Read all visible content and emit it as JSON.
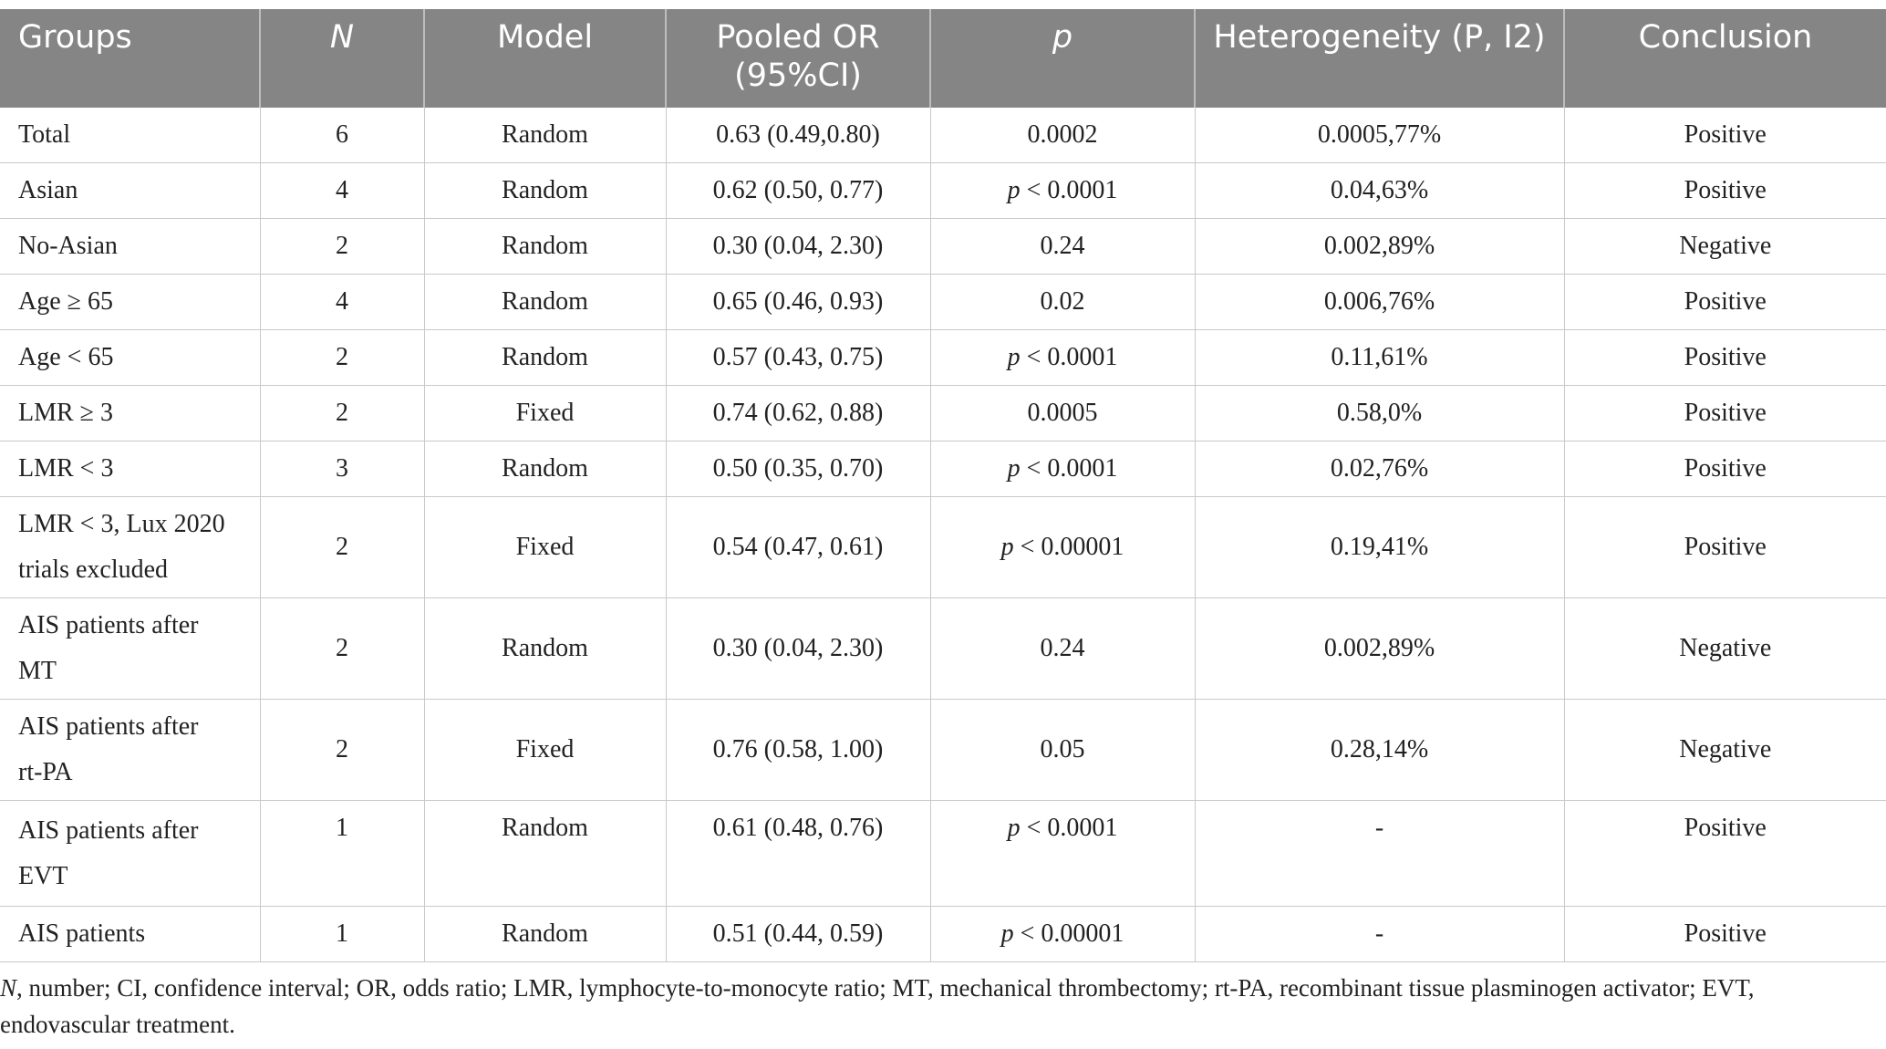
{
  "table": {
    "headers": {
      "groups": "Groups",
      "n": "N",
      "model": "Model",
      "pooled_or_line1": "Pooled OR",
      "pooled_or_line2": "(95%CI)",
      "p": "p",
      "heterogeneity": "Heterogeneity (P, I2)",
      "conclusion": "Conclusion"
    },
    "rows": [
      {
        "group": "Total",
        "n": "6",
        "model": "Random",
        "or": "0.63 (0.49,0.80)",
        "p_prefix": "",
        "p": "0.0002",
        "het": "0.0005,77%",
        "conclusion": "Positive"
      },
      {
        "group": "Asian",
        "n": "4",
        "model": "Random",
        "or": "0.62 (0.50, 0.77)",
        "p_prefix": "p",
        "p": " < 0.0001",
        "het": "0.04,63%",
        "conclusion": "Positive"
      },
      {
        "group": "No-Asian",
        "n": "2",
        "model": "Random",
        "or": "0.30 (0.04, 2.30)",
        "p_prefix": "",
        "p": "0.24",
        "het": "0.002,89%",
        "conclusion": "Negative"
      },
      {
        "group": "Age ≥ 65",
        "n": "4",
        "model": "Random",
        "or": "0.65 (0.46, 0.93)",
        "p_prefix": "",
        "p": "0.02",
        "het": "0.006,76%",
        "conclusion": "Positive"
      },
      {
        "group": "Age < 65",
        "n": "2",
        "model": "Random",
        "or": "0.57 (0.43, 0.75)",
        "p_prefix": "p",
        "p": " < 0.0001",
        "het": "0.11,61%",
        "conclusion": "Positive"
      },
      {
        "group": "LMR ≥ 3",
        "n": "2",
        "model": "Fixed",
        "or": "0.74 (0.62, 0.88)",
        "p_prefix": "",
        "p": "0.0005",
        "het": "0.58,0%",
        "conclusion": "Positive"
      },
      {
        "group": "LMR < 3",
        "n": "3",
        "model": "Random",
        "or": "0.50 (0.35, 0.70)",
        "p_prefix": "p",
        "p": " < 0.0001",
        "het": "0.02,76%",
        "conclusion": "Positive"
      },
      {
        "group_line1": "LMR < 3, Lux 2020",
        "group_line2": "trials excluded",
        "n": "2",
        "model": "Fixed",
        "or": "0.54 (0.47, 0.61)",
        "p_prefix": "p",
        "p": " < 0.00001",
        "het": "0.19,41%",
        "conclusion": "Positive"
      },
      {
        "group_line1": "AIS patients after",
        "group_line2": "MT",
        "n": "2",
        "model": "Random",
        "or": "0.30 (0.04, 2.30)",
        "p_prefix": "",
        "p": "0.24",
        "het": "0.002,89%",
        "conclusion": "Negative"
      },
      {
        "group_line1": "AIS patients after",
        "group_line2": "rt-PA",
        "n": "2",
        "model": "Fixed",
        "or": "0.76 (0.58, 1.00)",
        "p_prefix": "",
        "p": "0.05",
        "het": "0.28,14%",
        "conclusion": "Negative"
      },
      {
        "group_line1": "AIS patients after",
        "group_line2": "EVT",
        "n": "1",
        "model": "Random",
        "or": "0.61 (0.48, 0.76)",
        "p_prefix": "p",
        "p": " < 0.0001",
        "het": "-",
        "conclusion": "Positive"
      },
      {
        "group": "AIS patients",
        "n": "1",
        "model": "Random",
        "or": "0.51 (0.44, 0.59)",
        "p_prefix": "p",
        "p": " < 0.00001",
        "het": "-",
        "conclusion": "Positive"
      }
    ]
  },
  "footnote": {
    "italic_lead": "N",
    "text": ", number; CI, confidence interval; OR, odds ratio; LMR, lymphocyte-to-monocyte ratio; MT, mechanical thrombectomy; rt-PA, recombinant tissue plasminogen activator; EVT, endovascular treatment."
  },
  "colors": {
    "header_bg": "#858585",
    "header_text": "#ffffff",
    "grid": "#c9c9c9"
  }
}
